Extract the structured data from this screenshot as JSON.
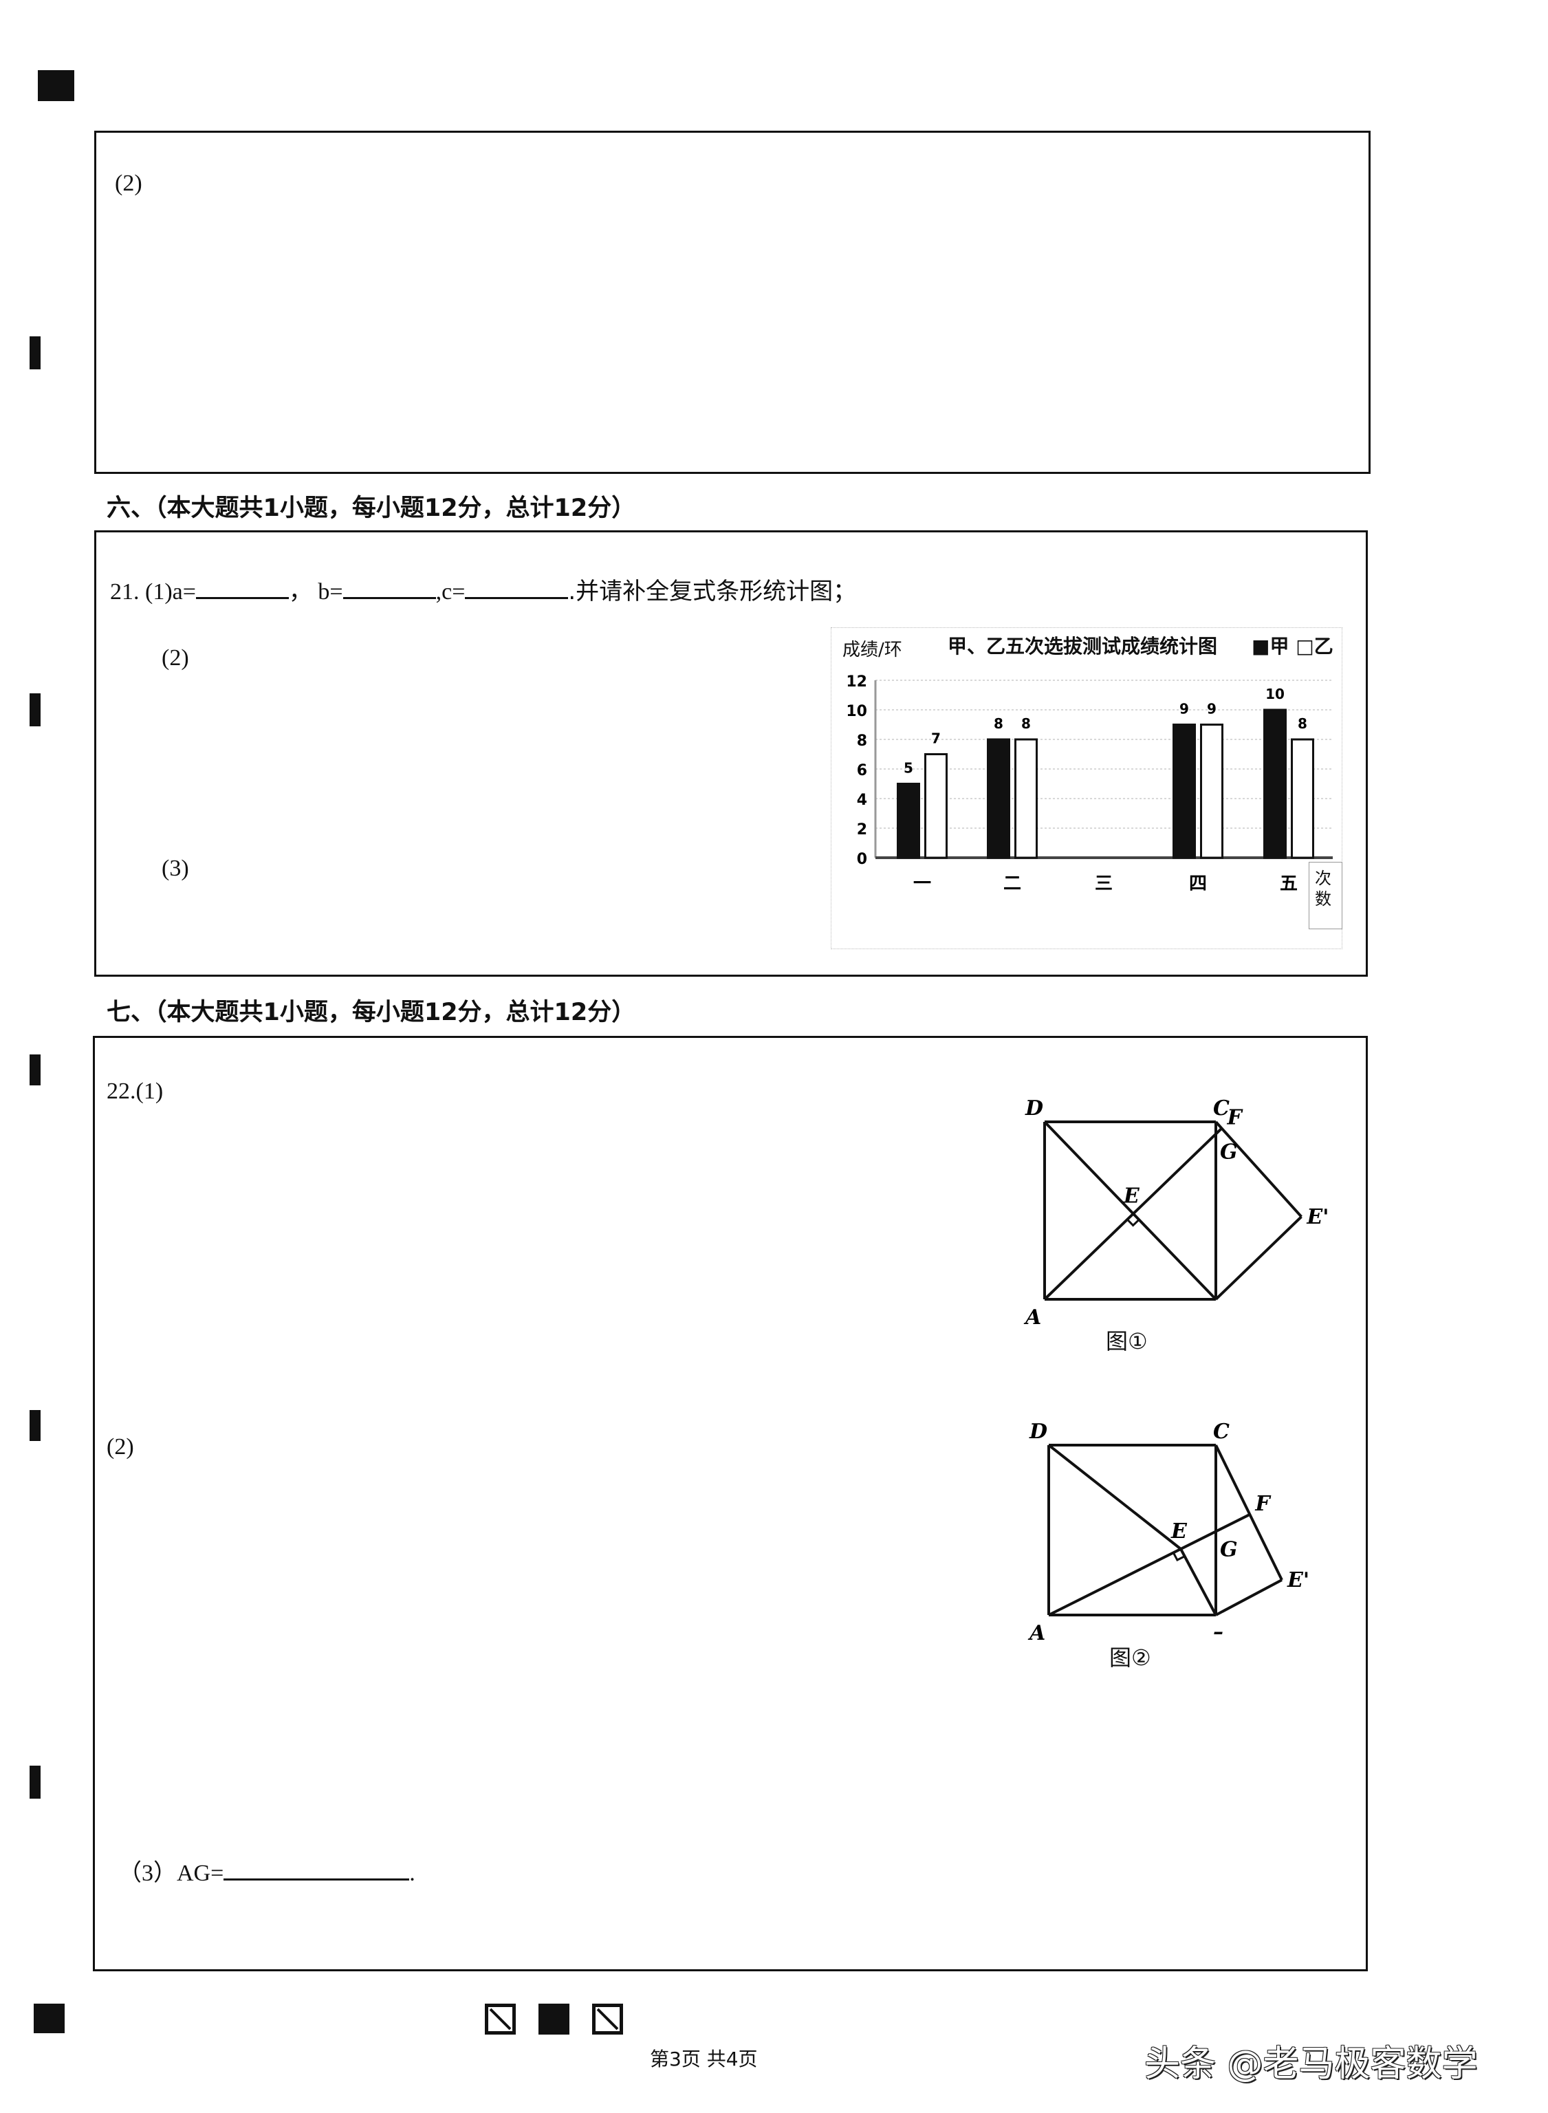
{
  "section6": {
    "header": "六、（本大题共1小题，每小题12分，总计12分）"
  },
  "section7": {
    "header": "七、（本大题共1小题，每小题12分，总计12分）"
  },
  "box_prev": {
    "part2": "(2)"
  },
  "q21": {
    "number": "21.",
    "part1_prefix": "(1)a=",
    "b_label": "，  b=",
    "c_label": ",c=",
    "part1_suffix": ".并请补全复式条形统计图；",
    "part2": "(2)",
    "part3": "(3)"
  },
  "q22": {
    "part1": "22.(1)",
    "part2": "(2)",
    "part3_prefix": "（3）AG=",
    "part3_suffix": ".",
    "figure1": {
      "caption": "图①",
      "labels": {
        "A": "A",
        "C": "C",
        "D": "D",
        "E": "E",
        "F": "F",
        "G": "G",
        "E_prime": "E'"
      }
    },
    "figure2": {
      "caption": "图②",
      "labels": {
        "A": "A",
        "C": "C",
        "D": "D",
        "E": "E",
        "F": "F",
        "G": "G",
        "E_prime": "E'",
        "B_mark": "–"
      }
    }
  },
  "chart_data": {
    "type": "bar",
    "title": "甲、乙五次选拔测试成绩统计图",
    "ylabel": "成绩/环",
    "xlabel": "次数",
    "categories": [
      "一",
      "二",
      "三",
      "四",
      "五"
    ],
    "series": [
      {
        "name": "甲",
        "values": [
          5,
          8,
          null,
          9,
          10
        ],
        "color": "#111111"
      },
      {
        "name": "乙",
        "values": [
          7,
          8,
          null,
          9,
          8
        ],
        "color": "#ffffff"
      }
    ],
    "yticks": [
      "0",
      "2",
      "4",
      "6",
      "8",
      "10",
      "12"
    ],
    "ylim": [
      0,
      12
    ],
    "grid": true,
    "legend": "top-right",
    "legend_markers": [
      "■",
      "□"
    ]
  },
  "footer": {
    "page": "第3页  共4页",
    "watermark": "头条 @老马极客数学"
  }
}
